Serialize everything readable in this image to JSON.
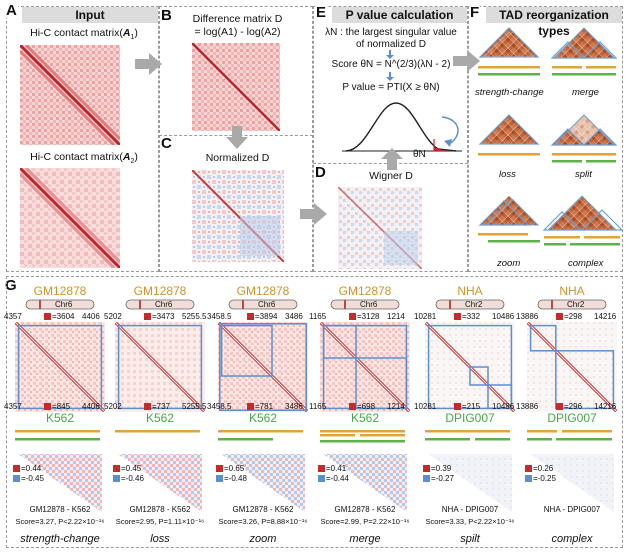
{
  "panel_letters": {
    "a": "A",
    "b": "B",
    "c": "C",
    "d": "D",
    "e": "E",
    "f": "F",
    "g": "G"
  },
  "headers": {
    "a": "Input",
    "e": "P value calculation",
    "f": "TAD reorganization types"
  },
  "panel_a": {
    "label1_pre": "Hi-C contact matrix(",
    "label1_var": "A",
    "label1_sub": "1",
    "label2_pre": "Hi-C contact matrix(",
    "label2_var": "A",
    "label2_sub": "2"
  },
  "panel_b": {
    "line1": "Difference matrix D",
    "line2": "= log(A1) - log(A2)"
  },
  "panel_c": {
    "title": "Normalized D"
  },
  "panel_d": {
    "title": "Wigner D"
  },
  "panel_e": {
    "line1": "λN : the largest singular value",
    "line2": "of normalized D",
    "line3": "Score θN = N^(2/3)(λN - 2)",
    "line4": "P value = PTI(X ≥ θN)",
    "theta": "θN"
  },
  "panel_f": {
    "types": [
      "strength-change",
      "merge",
      "loss",
      "split",
      "zoom",
      "complex"
    ]
  },
  "colors": {
    "hic_red": "#d9454a",
    "tad_brown": "#b8552e",
    "tad_outline": "#6a9fd4",
    "orange_bar": "#e3a33a",
    "green_bar": "#5fb14e",
    "blue": "#5a8fd0",
    "cell_green": "#4aa64a",
    "cell_orange": "#d49228"
  },
  "panel_g": {
    "examples": [
      {
        "top_cell": "GM12878",
        "chr": "Chr6",
        "top_left": "4357",
        "top_right": "4406",
        "top_score": "=3604",
        "bottom_left": "4357",
        "bottom_right": "4406",
        "bottom_score": "=845",
        "bottom_cell": "K562",
        "pos": "=0.44",
        "neg": "=-0.45",
        "compare": "GM12878 - K562",
        "score_line": "Score=3.27, P<2.22×10⁻¹⁶",
        "type": "strength-change"
      },
      {
        "top_cell": "GM12878",
        "chr": "Chr6",
        "top_left": "5202",
        "top_right": "5255.5",
        "top_score": "=3473",
        "bottom_left": "5202",
        "bottom_right": "5255.5",
        "bottom_score": "=737",
        "bottom_cell": "K562",
        "pos": "=0.45",
        "neg": "=-0.46",
        "compare": "GM12878 - K562",
        "score_line": "Score=2.95, P=1.11×10⁻¹⁶",
        "type": "loss"
      },
      {
        "top_cell": "GM12878",
        "chr": "Chr6",
        "top_left": "3458.5",
        "top_right": "3486",
        "top_score": "=3894",
        "bottom_left": "3458.5",
        "bottom_right": "3486",
        "bottom_score": "=781",
        "bottom_cell": "K562",
        "pos": "=0.65",
        "neg": "=-0.48",
        "compare": "GM12878 - K562",
        "score_line": "Score=3.26, P=8.88×10⁻¹⁶",
        "type": "zoom"
      },
      {
        "top_cell": "GM12878",
        "chr": "Chr6",
        "top_left": "1165",
        "top_right": "1214",
        "top_score": "=3128",
        "bottom_left": "1165",
        "bottom_right": "1214",
        "bottom_score": "=698",
        "bottom_cell": "K562",
        "pos": "=0.41",
        "neg": "=-0.44",
        "compare": "GM12878 - K562",
        "score_line": "Score=2.99, P=2.22×10⁻¹⁶",
        "type": "merge"
      },
      {
        "top_cell": "NHA",
        "chr": "Chr2",
        "top_left": "10281",
        "top_right": "10486",
        "top_score": "=332",
        "bottom_left": "10281",
        "bottom_right": "10486",
        "bottom_score": "=215",
        "bottom_cell": "DPIG007",
        "pos": "=0.39",
        "neg": "=-0.27",
        "compare": "NHA - DPIG007",
        "score_line": "Score=3.33, P<2.22×10⁻¹⁶",
        "type": "spilt"
      },
      {
        "top_cell": "NHA",
        "chr": "Chr2",
        "top_left": "13886",
        "top_right": "14216",
        "top_score": "=298",
        "bottom_left": "13886",
        "bottom_right": "14216",
        "bottom_score": "=296",
        "bottom_cell": "DPIG007",
        "pos": "=0.26",
        "neg": "=-0.25",
        "compare": "NHA - DPIG007",
        "score_line": "",
        "type": "complex"
      }
    ]
  }
}
